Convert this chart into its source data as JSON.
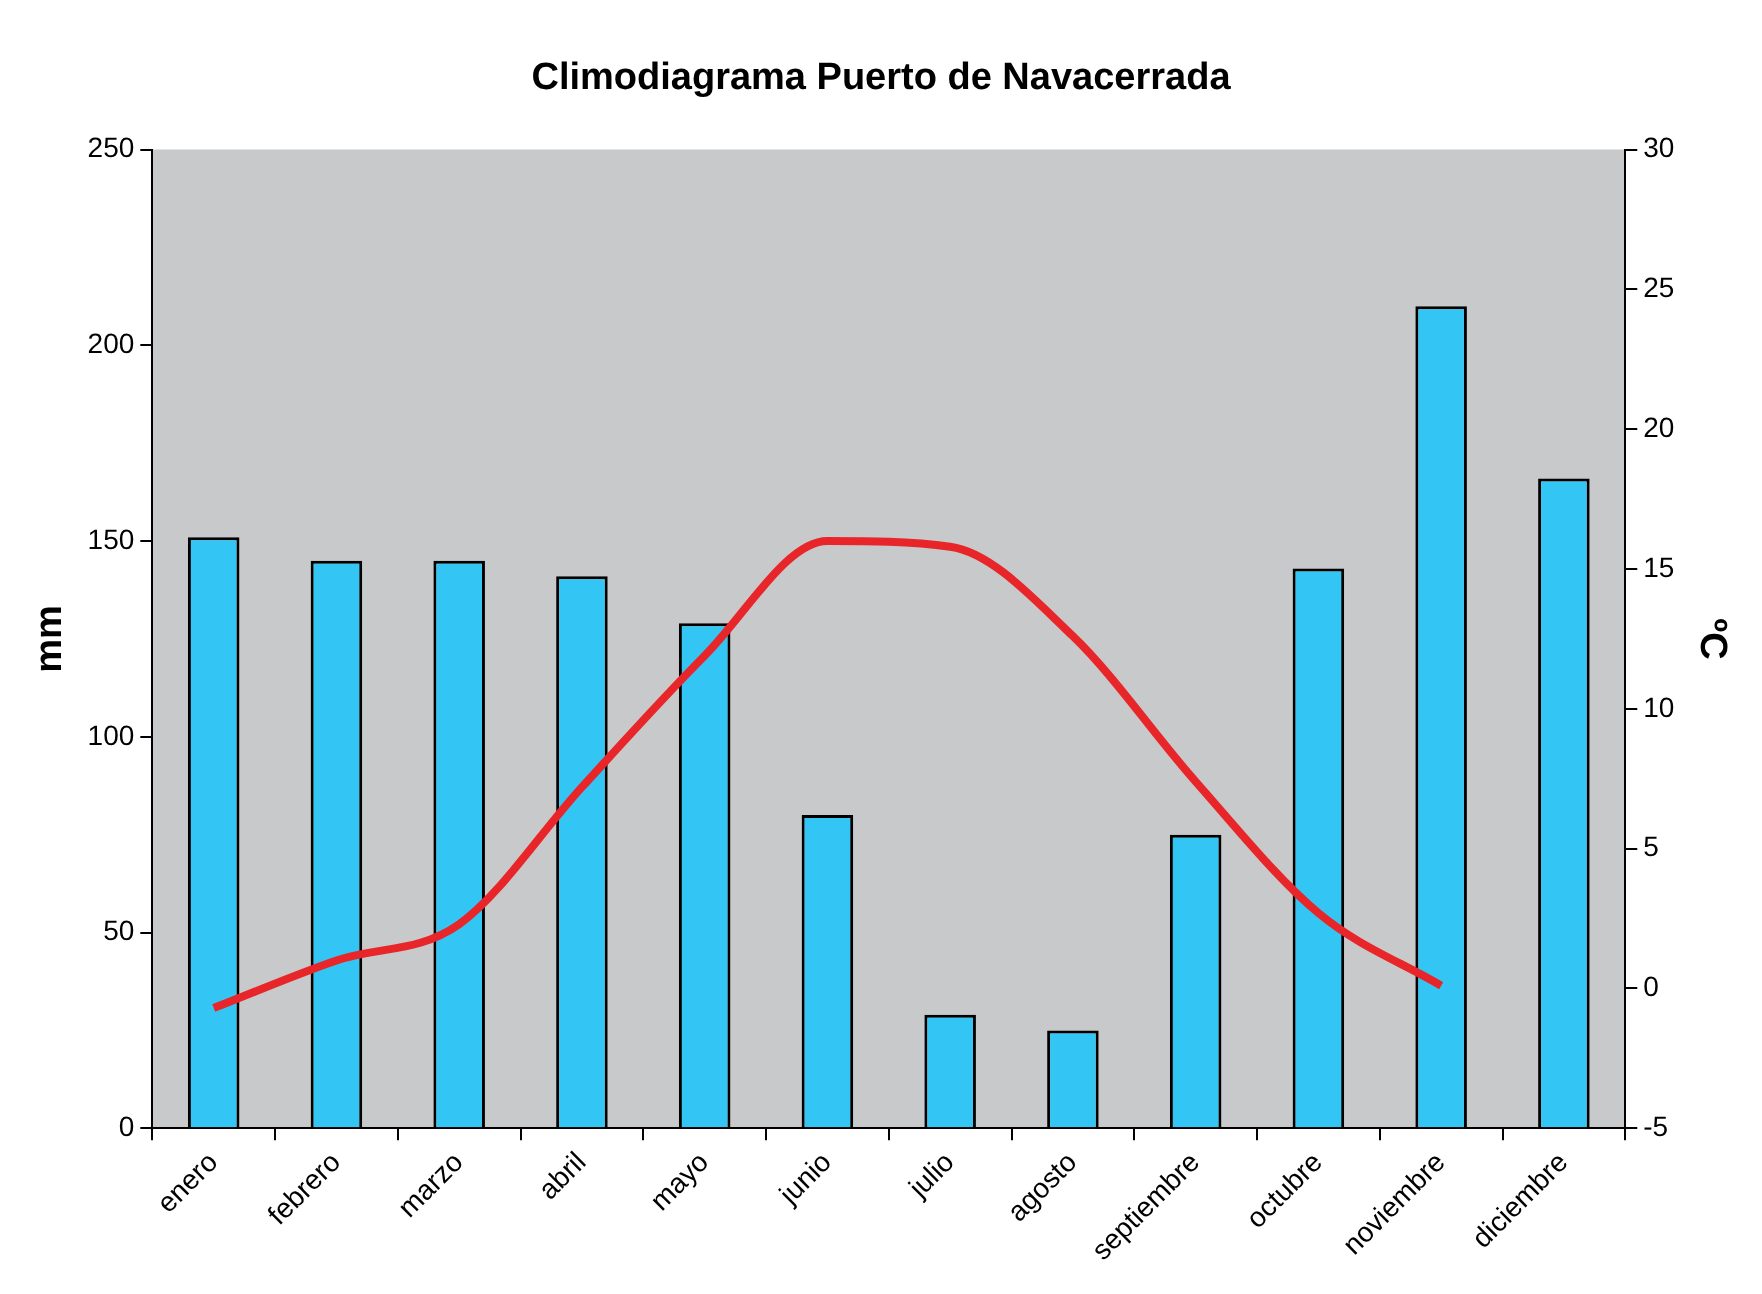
{
  "chart_data": {
    "type": "bar",
    "title": "Climodiagrama Puerto de Navacerrada",
    "ylabel": "mm",
    "y2label": "ºC",
    "categories": [
      "enero",
      "febrero",
      "marzo",
      "abril",
      "mayo",
      "junio",
      "julio",
      "agosto",
      "septiembre",
      "octubre",
      "noviembre",
      "diciembre"
    ],
    "series": [
      {
        "color": "#33c6f4",
        "values": [
          151,
          145,
          145,
          141,
          129,
          80,
          29,
          25,
          75,
          143,
          210,
          166
        ]
      },
      {
        "type": "line",
        "axis": "y2",
        "color": "#e8262a",
        "values": [
          -0.7,
          1.0,
          2.3,
          7.2,
          11.9,
          16.0,
          15.8,
          12.6,
          7.4,
          2.7,
          0.1,
          null
        ]
      }
    ],
    "ylim": [
      0,
      250
    ],
    "yticks": [
      0,
      50,
      100,
      150,
      200,
      250
    ],
    "y2lim": [
      -5,
      30
    ],
    "y2ticks": [
      -5,
      0,
      5,
      10,
      15,
      20,
      25,
      30
    ],
    "marker": "none"
  }
}
